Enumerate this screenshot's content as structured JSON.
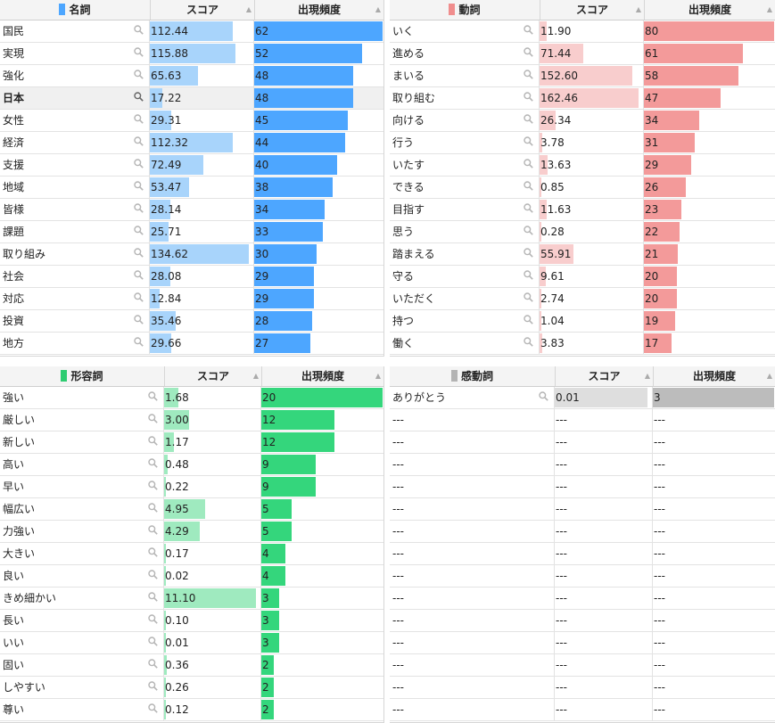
{
  "panels": [
    {
      "key": "noun",
      "title": "名詞",
      "color": "#4da6ff",
      "score_color": "#a8d4fb",
      "freq_color": "#4da6ff",
      "col_score": "スコア",
      "col_freq": "出現頻度",
      "selected": "日本",
      "rows": [
        {
          "word": "国民",
          "score": "112.44",
          "freq": "62"
        },
        {
          "word": "実現",
          "score": "115.88",
          "freq": "52"
        },
        {
          "word": "強化",
          "score": "65.63",
          "freq": "48"
        },
        {
          "word": "日本",
          "score": "17.22",
          "freq": "48"
        },
        {
          "word": "女性",
          "score": "29.31",
          "freq": "45"
        },
        {
          "word": "経済",
          "score": "112.32",
          "freq": "44"
        },
        {
          "word": "支援",
          "score": "72.49",
          "freq": "40"
        },
        {
          "word": "地域",
          "score": "53.47",
          "freq": "38"
        },
        {
          "word": "皆様",
          "score": "28.14",
          "freq": "34"
        },
        {
          "word": "課題",
          "score": "25.71",
          "freq": "33"
        },
        {
          "word": "取り組み",
          "score": "134.62",
          "freq": "30"
        },
        {
          "word": "社会",
          "score": "28.08",
          "freq": "29"
        },
        {
          "word": "対応",
          "score": "12.84",
          "freq": "29"
        },
        {
          "word": "投資",
          "score": "35.46",
          "freq": "28"
        },
        {
          "word": "地方",
          "score": "29.66",
          "freq": "27"
        }
      ]
    },
    {
      "key": "verb",
      "title": "動詞",
      "color": "#f08d8d",
      "score_color": "#f8cdcd",
      "freq_color": "#f39a9a",
      "col_score": "スコア",
      "col_freq": "出現頻度",
      "rows": [
        {
          "word": "いく",
          "score": "11.90",
          "freq": "80"
        },
        {
          "word": "進める",
          "score": "71.44",
          "freq": "61"
        },
        {
          "word": "まいる",
          "score": "152.60",
          "freq": "58"
        },
        {
          "word": "取り組む",
          "score": "162.46",
          "freq": "47"
        },
        {
          "word": "向ける",
          "score": "26.34",
          "freq": "34"
        },
        {
          "word": "行う",
          "score": "3.78",
          "freq": "31"
        },
        {
          "word": "いたす",
          "score": "13.63",
          "freq": "29"
        },
        {
          "word": "できる",
          "score": "0.85",
          "freq": "26"
        },
        {
          "word": "目指す",
          "score": "11.63",
          "freq": "23"
        },
        {
          "word": "思う",
          "score": "0.28",
          "freq": "22"
        },
        {
          "word": "踏まえる",
          "score": "55.91",
          "freq": "21"
        },
        {
          "word": "守る",
          "score": "9.61",
          "freq": "20"
        },
        {
          "word": "いただく",
          "score": "2.74",
          "freq": "20"
        },
        {
          "word": "持つ",
          "score": "1.04",
          "freq": "19"
        },
        {
          "word": "働く",
          "score": "3.83",
          "freq": "17"
        }
      ]
    },
    {
      "key": "adjective",
      "title": "形容詞",
      "color": "#2ecc71",
      "score_color": "#9feabf",
      "freq_color": "#34d67c",
      "col_score": "スコア",
      "col_freq": "出現頻度",
      "rows": [
        {
          "word": "強い",
          "score": "1.68",
          "freq": "20"
        },
        {
          "word": "厳しい",
          "score": "3.00",
          "freq": "12"
        },
        {
          "word": "新しい",
          "score": "1.17",
          "freq": "12"
        },
        {
          "word": "高い",
          "score": "0.48",
          "freq": "9"
        },
        {
          "word": "早い",
          "score": "0.22",
          "freq": "9"
        },
        {
          "word": "幅広い",
          "score": "4.95",
          "freq": "5"
        },
        {
          "word": "力強い",
          "score": "4.29",
          "freq": "5"
        },
        {
          "word": "大きい",
          "score": "0.17",
          "freq": "4"
        },
        {
          "word": "良い",
          "score": "0.02",
          "freq": "4"
        },
        {
          "word": "きめ細かい",
          "score": "11.10",
          "freq": "3"
        },
        {
          "word": "長い",
          "score": "0.10",
          "freq": "3"
        },
        {
          "word": "いい",
          "score": "0.01",
          "freq": "3"
        },
        {
          "word": "固い",
          "score": "0.36",
          "freq": "2"
        },
        {
          "word": "しやすい",
          "score": "0.26",
          "freq": "2"
        },
        {
          "word": "尊い",
          "score": "0.12",
          "freq": "2"
        }
      ]
    },
    {
      "key": "interjection",
      "title": "感動詞",
      "color": "#b3b3b3",
      "score_color": "#dedede",
      "freq_color": "#bcbcbc",
      "col_score": "スコア",
      "col_freq": "出現頻度",
      "empty_text": "---",
      "rows": [
        {
          "word": "ありがとう",
          "score": "0.01",
          "freq": "3"
        },
        {
          "word": "---",
          "score": "---",
          "freq": "---"
        },
        {
          "word": "---",
          "score": "---",
          "freq": "---"
        },
        {
          "word": "---",
          "score": "---",
          "freq": "---"
        },
        {
          "word": "---",
          "score": "---",
          "freq": "---"
        },
        {
          "word": "---",
          "score": "---",
          "freq": "---"
        },
        {
          "word": "---",
          "score": "---",
          "freq": "---"
        },
        {
          "word": "---",
          "score": "---",
          "freq": "---"
        },
        {
          "word": "---",
          "score": "---",
          "freq": "---"
        },
        {
          "word": "---",
          "score": "---",
          "freq": "---"
        },
        {
          "word": "---",
          "score": "---",
          "freq": "---"
        },
        {
          "word": "---",
          "score": "---",
          "freq": "---"
        },
        {
          "word": "---",
          "score": "---",
          "freq": "---"
        },
        {
          "word": "---",
          "score": "---",
          "freq": "---"
        },
        {
          "word": "---",
          "score": "---",
          "freq": "---"
        }
      ]
    }
  ]
}
